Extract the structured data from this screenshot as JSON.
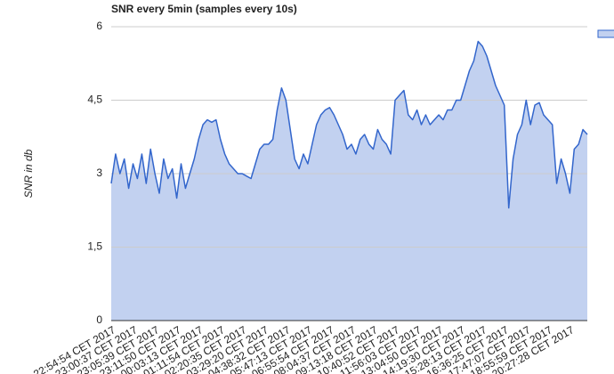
{
  "chart_data": {
    "type": "area",
    "title": "SNR every 5min (samples every 10s)",
    "y_label": "SNR in db",
    "categories": [
      "22:54:54 CET 2017",
      null,
      null,
      null,
      null,
      "23:00:37 CET 2017",
      null,
      null,
      null,
      null,
      "23:05:39 CET 2017",
      null,
      null,
      null,
      null,
      "23:11:50 CET 2017",
      null,
      null,
      null,
      null,
      "00:03:13 CET 2017",
      null,
      null,
      null,
      null,
      "01:11:54 CET 2017",
      null,
      null,
      null,
      null,
      "02:20:35 CET 2017",
      null,
      null,
      null,
      null,
      "03:29:20 CET 2017",
      null,
      null,
      null,
      null,
      "04:38:32 CET 2017",
      null,
      null,
      null,
      null,
      "05:47:13 CET 2017",
      null,
      null,
      null,
      null,
      "06:55:54 CET 2017",
      null,
      null,
      null,
      null,
      "08:04:37 CET 2017",
      null,
      null,
      null,
      null,
      "09:13:18 CET 2017",
      null,
      null,
      null,
      null,
      "10:40:52 CET 2017",
      null,
      null,
      null,
      null,
      "11:56:03 CET 2017",
      null,
      null,
      null,
      null,
      "13:04:50 CET 2017",
      null,
      null,
      null,
      null,
      "14:19:30 CET 2017",
      null,
      null,
      null,
      null,
      "15:28:13 CET 2017",
      null,
      null,
      null,
      null,
      "16:36:25 CET 2017",
      null,
      null,
      null,
      null,
      "17:47:07 CET 2017",
      null,
      null,
      null,
      null,
      "18:55:59 CET 2017",
      null,
      null,
      null,
      null,
      "20:27:28 CET 2017",
      null,
      null,
      null,
      null
    ],
    "series": [
      {
        "color": "#3366cc",
        "fill": "#c2d1f0",
        "values": [
          2.8,
          3.4,
          3.0,
          3.3,
          2.7,
          3.2,
          2.9,
          3.4,
          2.8,
          3.5,
          3.0,
          2.6,
          3.3,
          2.9,
          3.1,
          2.5,
          3.2,
          2.7,
          3.0,
          3.3,
          3.7,
          4.0,
          4.1,
          4.05,
          4.1,
          3.7,
          3.4,
          3.2,
          3.1,
          3.0,
          3.0,
          2.95,
          2.9,
          3.2,
          3.5,
          3.6,
          3.6,
          3.7,
          4.3,
          4.75,
          4.5,
          3.9,
          3.3,
          3.1,
          3.4,
          3.2,
          3.6,
          4.0,
          4.2,
          4.3,
          4.35,
          4.2,
          4.0,
          3.8,
          3.5,
          3.6,
          3.4,
          3.7,
          3.8,
          3.6,
          3.5,
          3.9,
          3.7,
          3.6,
          3.4,
          4.5,
          4.6,
          4.7,
          4.2,
          4.1,
          4.3,
          4.0,
          4.2,
          4.0,
          4.1,
          4.2,
          4.1,
          4.3,
          4.3,
          4.5,
          4.5,
          4.8,
          5.1,
          5.3,
          5.7,
          5.6,
          5.4,
          5.1,
          4.8,
          4.6,
          4.4,
          2.3,
          3.3,
          3.8,
          4.0,
          4.5,
          4.0,
          4.4,
          4.45,
          4.2,
          4.1,
          4.0,
          2.8,
          3.3,
          3.0,
          2.6,
          3.5,
          3.6,
          3.9,
          3.8
        ]
      }
    ],
    "ylim": [
      0,
      6
    ],
    "yticks": [
      0,
      {
        "value": 1.5,
        "label": "1,5"
      },
      3,
      {
        "value": 4.5,
        "label": "4,5"
      },
      6
    ],
    "grid": true
  }
}
